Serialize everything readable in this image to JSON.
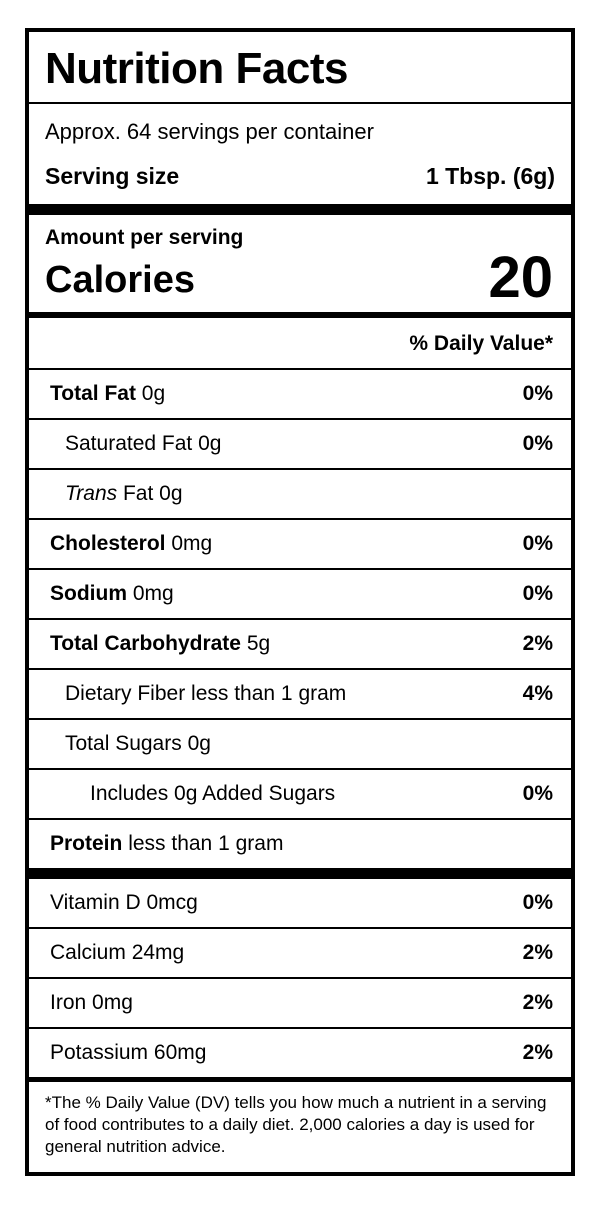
{
  "nutrition_label": {
    "title": "Nutrition Facts",
    "servings_per_container": "Approx. 64 servings per container",
    "serving_size": {
      "label": "Serving size",
      "value": "1 Tbsp. (6g)"
    },
    "amount_per_serving_label": "Amount per serving",
    "calories": {
      "label": "Calories",
      "value": "20"
    },
    "daily_value_header": "% Daily Value*",
    "rows": [
      {
        "name": "Total Fat",
        "amount": "0g",
        "dv": "0%"
      },
      {
        "name": "Saturated Fat",
        "amount": "0g",
        "dv": "0%"
      },
      {
        "name": "Trans",
        "amount": "Fat 0g",
        "dv": ""
      },
      {
        "name": "Cholesterol",
        "amount": "0mg",
        "dv": "0%"
      },
      {
        "name": "Sodium",
        "amount": "0mg",
        "dv": "0%"
      },
      {
        "name": "Total Carbohydrate",
        "amount": "5g",
        "dv": "2%"
      },
      {
        "name": "Dietary Fiber",
        "amount": "less than 1 gram",
        "dv": "4%"
      },
      {
        "name": "Total Sugars",
        "amount": "0g",
        "dv": ""
      },
      {
        "name": "Includes 0g Added Sugars",
        "amount": "",
        "dv": "0%"
      },
      {
        "name": "Protein",
        "amount": "less than 1 gram",
        "dv": ""
      }
    ],
    "vitamin_rows": [
      {
        "name": "Vitamin D",
        "amount": "0mcg",
        "dv": "0%"
      },
      {
        "name": "Calcium",
        "amount": "24mg",
        "dv": "2%"
      },
      {
        "name": "Iron",
        "amount": "0mg",
        "dv": "2%"
      },
      {
        "name": "Potassium",
        "amount": "60mg",
        "dv": "2%"
      }
    ],
    "footnote": "*The % Daily Value (DV) tells you how much a nutrient in a serving of food contributes to a daily diet. 2,000 calories a day is used for general nutrition advice.",
    "colors": {
      "text": "#000000",
      "background": "#ffffff"
    }
  }
}
